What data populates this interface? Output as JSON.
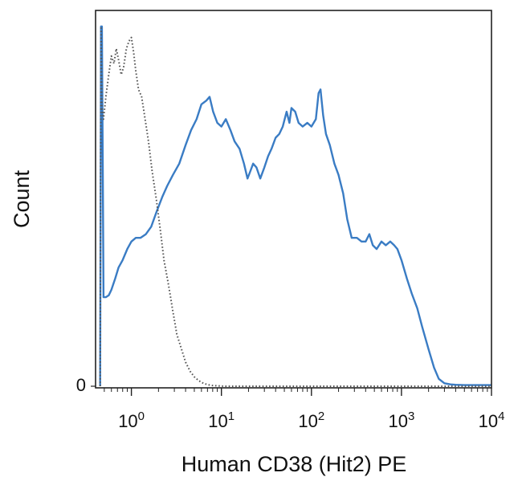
{
  "chart_data": {
    "type": "line",
    "title": "",
    "xlabel": "Human CD38 (Hit2) PE",
    "ylabel": "Count",
    "x_scale": "log",
    "xlim": [
      0.4,
      10000
    ],
    "ylim": [
      0,
      100
    ],
    "x_ticks": [
      {
        "value": 1,
        "base": "10",
        "exp": "0"
      },
      {
        "value": 10,
        "base": "10",
        "exp": "1"
      },
      {
        "value": 100,
        "base": "10",
        "exp": "2"
      },
      {
        "value": 1000,
        "base": "10",
        "exp": "3"
      },
      {
        "value": 10000,
        "base": "10",
        "exp": "4"
      }
    ],
    "y_ticks": [
      {
        "value": 0,
        "label": "0"
      }
    ],
    "grid": false,
    "legend": "none",
    "series": [
      {
        "color": "#3a7cc4",
        "style": "solid",
        "x": [
          0.45,
          0.46,
          0.47,
          0.48,
          0.49,
          0.52,
          0.56,
          0.6,
          0.66,
          0.72,
          0.8,
          0.9,
          1.0,
          1.12,
          1.26,
          1.45,
          1.66,
          1.9,
          2.2,
          2.5,
          2.9,
          3.4,
          4.0,
          4.6,
          5.3,
          6.0,
          6.8,
          7.4,
          8.1,
          9.0,
          10.0,
          11.2,
          12.6,
          14.0,
          15.9,
          17.8,
          19.5,
          21.0,
          22.5,
          24.5,
          27.0,
          30.0,
          33.0,
          36.0,
          40.0,
          44.0,
          48.0,
          53.0,
          57.0,
          60.0,
          66.0,
          72.0,
          80.0,
          90.0,
          100.0,
          112.0,
          120.0,
          126.0,
          135.0,
          145.0,
          160.0,
          180.0,
          200.0,
          225.0,
          250.0,
          280.0,
          320.0,
          360.0,
          400.0,
          440.0,
          480.0,
          530.0,
          600.0,
          670.0,
          750.0,
          830.0,
          900.0,
          1000.0,
          1150.0,
          1300.0,
          1500.0,
          1700.0,
          2000.0,
          2300.0,
          2600.0,
          3000.0,
          3500.0,
          4000.0,
          5000.0,
          6000.0,
          8000.0,
          10000.0
        ],
        "y": [
          0,
          97,
          97,
          62,
          24,
          24,
          24.5,
          26,
          29,
          32,
          34,
          37,
          39,
          40,
          40,
          41,
          43,
          47,
          51,
          54,
          57,
          60,
          65,
          69,
          72,
          76,
          77,
          78,
          74,
          71,
          70,
          72,
          69,
          66,
          64,
          60,
          56,
          58,
          60,
          59,
          56,
          59,
          62,
          64,
          67,
          68,
          70,
          74,
          71,
          75,
          74,
          71,
          70,
          71,
          70,
          72,
          79,
          80,
          73,
          68,
          65,
          60,
          57,
          52,
          45,
          40,
          40,
          39,
          39,
          41,
          38,
          37,
          39,
          38,
          39,
          38,
          37,
          34,
          29,
          25,
          21,
          16,
          10,
          5,
          2,
          0.8,
          0.5,
          0.4,
          0.3,
          0.3,
          0.3,
          0.3
        ]
      },
      {
        "color": "#555555",
        "style": "dotted",
        "x": [
          0.45,
          0.46,
          0.47,
          0.49,
          0.52,
          0.56,
          0.6,
          0.64,
          0.68,
          0.72,
          0.77,
          0.82,
          0.88,
          0.94,
          1.0,
          1.06,
          1.12,
          1.2,
          1.3,
          1.42,
          1.55,
          1.7,
          1.9,
          2.1,
          2.3,
          2.6,
          2.9,
          3.2,
          3.6,
          4.0,
          4.5,
          5.0,
          5.6,
          6.3,
          7.1,
          8.0,
          9.0,
          10.0,
          11.0,
          12.0,
          14.0,
          20.0,
          100.0,
          1000.0,
          10000.0
        ],
        "y": [
          0,
          97,
          75,
          72,
          78,
          84,
          89,
          87,
          91,
          88,
          84,
          86,
          91,
          93,
          94,
          90,
          85,
          80,
          78,
          72,
          66,
          58,
          50,
          42,
          34,
          27,
          20,
          14,
          10,
          6.5,
          4,
          2.5,
          1.5,
          0.8,
          0.4,
          0.2,
          0.1,
          0.05,
          0,
          0,
          0,
          0,
          0,
          0,
          0
        ]
      }
    ]
  }
}
